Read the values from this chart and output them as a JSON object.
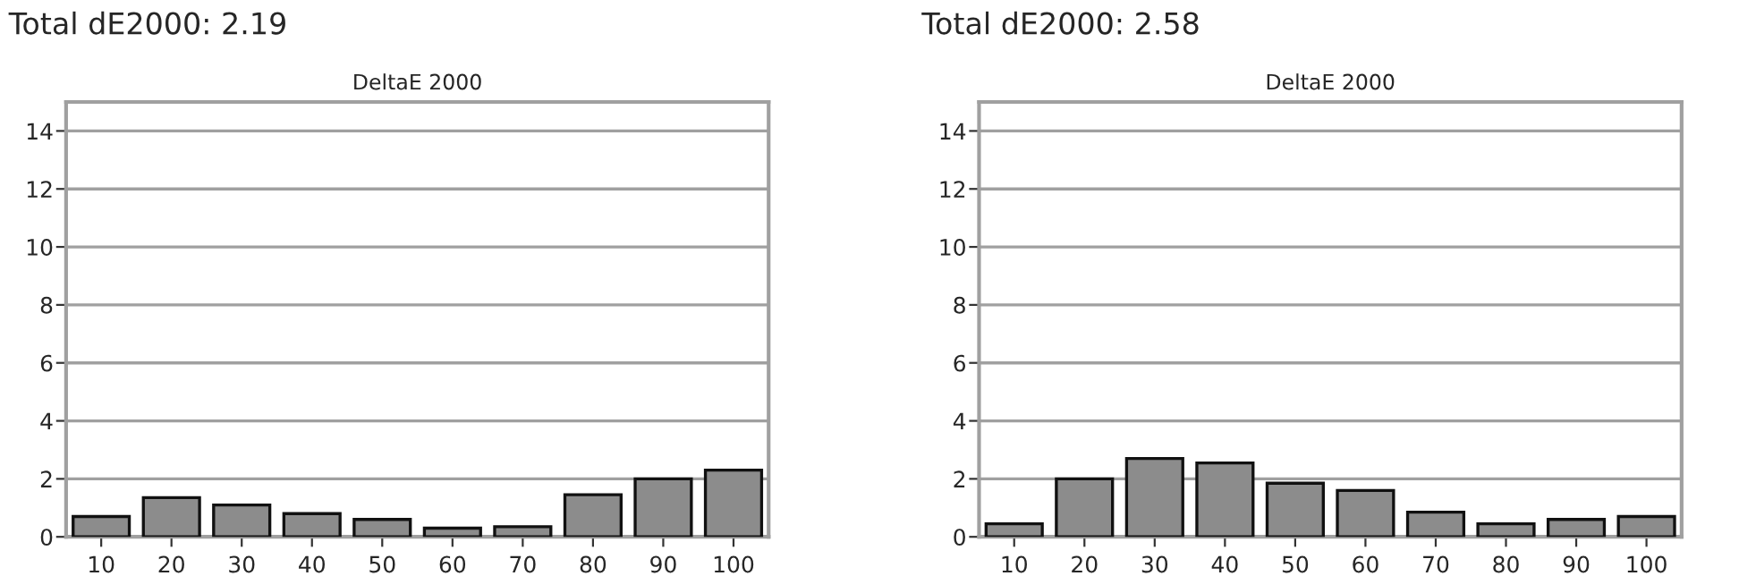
{
  "chart_data": [
    {
      "type": "bar",
      "title": "Total dE2000: 2.19",
      "subtitle": "DeltaE 2000",
      "categories": [
        "10",
        "20",
        "30",
        "40",
        "50",
        "60",
        "70",
        "80",
        "90",
        "100"
      ],
      "values": [
        0.7,
        1.35,
        1.1,
        0.8,
        0.6,
        0.3,
        0.35,
        1.45,
        2.0,
        2.3
      ],
      "color": "#8c8c8c",
      "ylim": [
        0,
        15
      ],
      "yticks": [
        0,
        2,
        4,
        6,
        8,
        10,
        12,
        14
      ],
      "grid": "y",
      "legend": false
    },
    {
      "type": "bar",
      "title": "Total dE2000: 2.58",
      "subtitle": "DeltaE 2000",
      "categories": [
        "10",
        "20",
        "30",
        "40",
        "50",
        "60",
        "70",
        "80",
        "90",
        "100"
      ],
      "values": [
        0.45,
        2.0,
        2.7,
        2.55,
        1.85,
        1.6,
        0.85,
        0.45,
        0.6,
        0.7
      ],
      "color": "#8c8c8c",
      "ylim": [
        0,
        15
      ],
      "yticks": [
        0,
        2,
        4,
        6,
        8,
        10,
        12,
        14
      ],
      "grid": "y",
      "legend": false
    }
  ]
}
